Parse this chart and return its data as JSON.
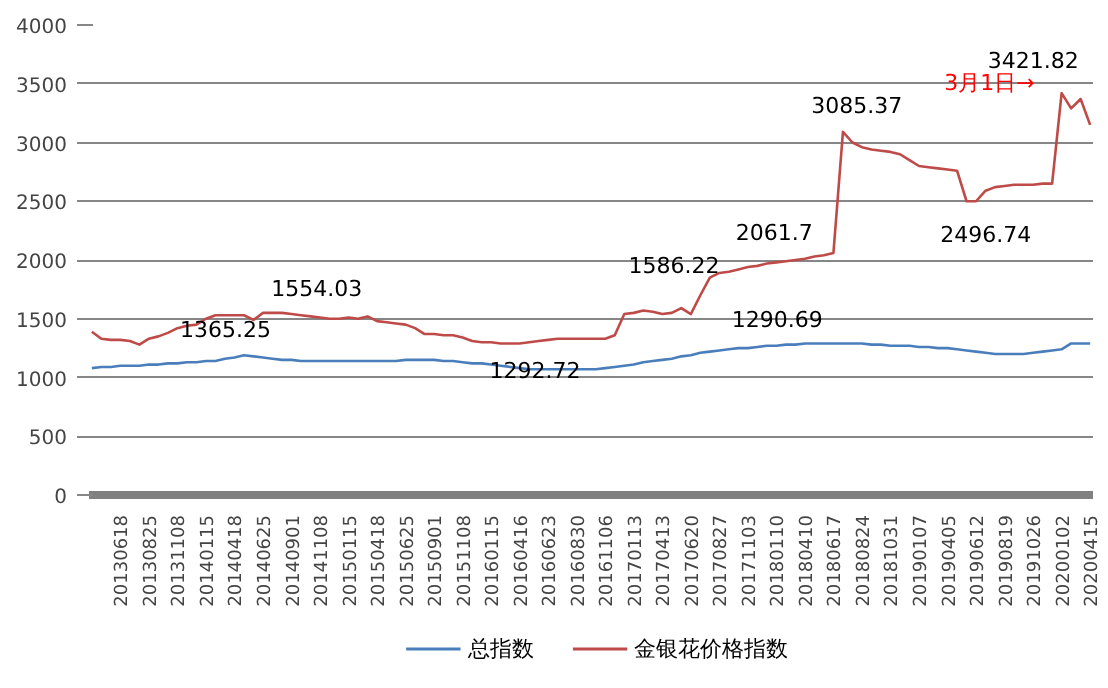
{
  "chart_data": {
    "type": "line",
    "categories": [
      null,
      null,
      null,
      "20130618",
      null,
      null,
      "20130825",
      null,
      null,
      "20131108",
      null,
      null,
      "20140115",
      null,
      null,
      "20140418",
      null,
      null,
      "20140625",
      null,
      null,
      "20140901",
      null,
      null,
      "20141108",
      null,
      null,
      "20150115",
      null,
      null,
      "20150418",
      null,
      null,
      "20150625",
      null,
      null,
      "20150901",
      null,
      null,
      "20151108",
      null,
      null,
      "20160115",
      null,
      null,
      "20160416",
      null,
      null,
      "20160623",
      null,
      null,
      "20160830",
      null,
      null,
      "20161106",
      null,
      null,
      "20170113",
      null,
      null,
      "20170413",
      null,
      null,
      "20170620",
      null,
      null,
      "20170827",
      null,
      null,
      "20171103",
      null,
      null,
      "20180110",
      null,
      null,
      "20180410",
      null,
      null,
      "20180617",
      null,
      null,
      "20180824",
      null,
      null,
      "20181031",
      null,
      null,
      "20190107",
      null,
      null,
      "20190405",
      null,
      null,
      "20190612",
      null,
      null,
      "20190819",
      null,
      null,
      "20191026",
      null,
      null,
      "20200102",
      null,
      null,
      "20200415"
    ],
    "series": [
      {
        "name": "总指数",
        "color": "#4a7ebb",
        "values": [
          1080,
          1090,
          1090,
          1100,
          1100,
          1100,
          1110,
          1110,
          1120,
          1120,
          1130,
          1130,
          1140,
          1140,
          1160,
          1170,
          1190,
          1180,
          1170,
          1160,
          1150,
          1150,
          1140,
          1140,
          1140,
          1140,
          1140,
          1140,
          1140,
          1140,
          1140,
          1140,
          1140,
          1150,
          1150,
          1150,
          1150,
          1140,
          1140,
          1130,
          1120,
          1120,
          1110,
          1100,
          1090,
          1080,
          1070,
          1070,
          1070,
          1070,
          1070,
          1070,
          1070,
          1070,
          1080,
          1090,
          1100,
          1110,
          1130,
          1140,
          1150,
          1160,
          1180,
          1190,
          1210,
          1220,
          1230,
          1240,
          1250,
          1250,
          1260,
          1270,
          1270,
          1280,
          1280,
          1290,
          1290,
          1290,
          1290,
          1290,
          1290,
          1290,
          1280,
          1280,
          1270,
          1270,
          1270,
          1260,
          1260,
          1250,
          1250,
          1240,
          1230,
          1220,
          1210,
          1200,
          1200,
          1200,
          1200,
          1210,
          1220,
          1230,
          1240,
          1290,
          1290,
          1290
        ]
      },
      {
        "name": "金银花价格指数",
        "color": "#be4b48",
        "values": [
          1390,
          1330,
          1320,
          1320,
          1310,
          1280,
          1330,
          1350,
          1380,
          1420,
          1440,
          1450,
          1500,
          1530,
          1530,
          1530,
          1530,
          1490,
          1550,
          1550,
          1550,
          1540,
          1530,
          1520,
          1510,
          1500,
          1500,
          1510,
          1500,
          1520,
          1480,
          1470,
          1460,
          1450,
          1420,
          1370,
          1370,
          1360,
          1360,
          1340,
          1310,
          1300,
          1300,
          1290,
          1290,
          1290,
          1300,
          1310,
          1320,
          1330,
          1330,
          1330,
          1330,
          1330,
          1330,
          1360,
          1540,
          1550,
          1570,
          1560,
          1540,
          1550,
          1590,
          1540,
          1700,
          1850,
          1890,
          1900,
          1920,
          1940,
          1950,
          1970,
          1980,
          1990,
          2000,
          2010,
          2030,
          2040,
          2060,
          3090,
          3000,
          2960,
          2940,
          2930,
          2920,
          2900,
          2850,
          2800,
          2790,
          2780,
          2770,
          2760,
          2500,
          2500,
          2590,
          2620,
          2630,
          2640,
          2640,
          2640,
          2650,
          2650,
          3420,
          3290,
          3370,
          3150
        ]
      }
    ],
    "ylim": [
      0,
      4000
    ],
    "yticks": [
      0,
      500,
      1000,
      1500,
      2000,
      2500,
      3000,
      3500,
      4000
    ],
    "grid": "y",
    "legend": "bottom",
    "marker": "none",
    "line_style": "solid",
    "annotations": [
      "1365.25",
      "1554.03",
      "1292.72",
      "1586.22",
      "1290.69",
      "2061.7",
      "3085.37",
      "2496.74",
      "3421.82",
      "3月1日→"
    ]
  }
}
